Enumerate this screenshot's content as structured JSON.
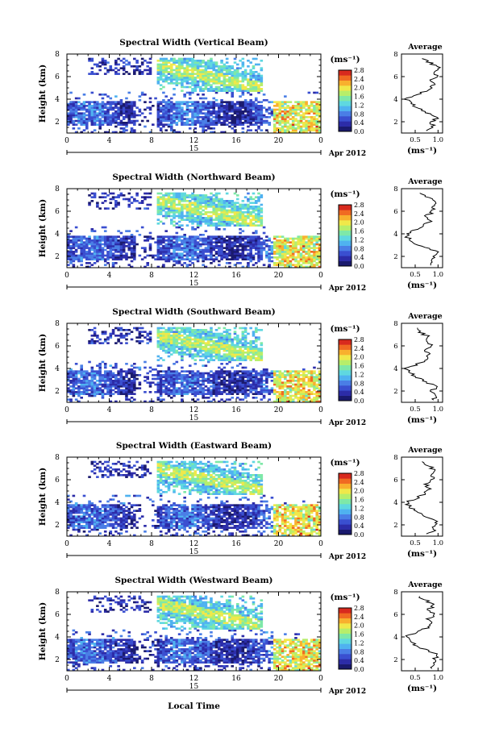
{
  "figure": {
    "date_label": "Apr 2012",
    "day_label": "15",
    "xlabel_bottom": "Local Time",
    "colorbar_unit": "(ms⁻¹)",
    "colorbar_ticks": [
      "0.0",
      "0.4",
      "0.8",
      "1.2",
      "1.6",
      "2.0",
      "2.4",
      "2.8"
    ],
    "avg_title": "Average",
    "avg_xlabel": "(ms⁻¹)",
    "colormap": [
      "#1a1a6e",
      "#2c2ca8",
      "#3a4fd0",
      "#4a7ee6",
      "#4fb2f0",
      "#5fd8e0",
      "#7ee8a8",
      "#b7ee6a",
      "#f0e84a",
      "#f8b02e",
      "#f06a22",
      "#d82a1e"
    ]
  },
  "chart_data": [
    {
      "type": "heatmap",
      "title": "Spectral Width (Vertical Beam)",
      "ylabel": "Height (km)",
      "xlim": [
        0,
        24
      ],
      "ylim": [
        1,
        8
      ],
      "xticks": [
        "0",
        "4",
        "8",
        "12",
        "16",
        "20",
        "0"
      ],
      "yticks": [
        "2",
        "4",
        "6",
        "8"
      ],
      "colorbar_range": [
        0.0,
        2.8
      ],
      "average_profile": {
        "xlim": [
          0.2,
          1.1
        ],
        "xticks": [
          "0.5",
          "1.0"
        ],
        "yticks": [
          "2",
          "4",
          "6",
          "8"
        ],
        "height_km": [
          1.2,
          1.6,
          2.0,
          2.4,
          2.8,
          3.2,
          3.6,
          4.0,
          4.4,
          4.8,
          5.2,
          5.6,
          6.0,
          6.4,
          6.8,
          7.2,
          7.6
        ],
        "width_ms": [
          0.8,
          0.9,
          0.85,
          1.0,
          0.75,
          0.55,
          0.4,
          0.3,
          0.55,
          0.75,
          0.9,
          0.85,
          0.95,
          0.9,
          1.0,
          0.85,
          0.65
        ]
      }
    },
    {
      "type": "heatmap",
      "title": "Spectral Width (Northward Beam)",
      "ylabel": "Height (km)",
      "xlim": [
        0,
        24
      ],
      "ylim": [
        1,
        8
      ],
      "xticks": [
        "0",
        "4",
        "8",
        "12",
        "16",
        "20",
        "0"
      ],
      "yticks": [
        "2",
        "4",
        "6",
        "8"
      ],
      "colorbar_range": [
        0.0,
        2.8
      ],
      "average_profile": {
        "xlim": [
          0.2,
          1.1
        ],
        "xticks": [
          "0.5",
          "1.0"
        ],
        "yticks": [
          "2",
          "4",
          "6",
          "8"
        ],
        "height_km": [
          1.2,
          1.6,
          2.0,
          2.4,
          2.8,
          3.2,
          3.6,
          4.0,
          4.4,
          4.8,
          5.2,
          5.6,
          6.0,
          6.4,
          6.8,
          7.2,
          7.6
        ],
        "width_ms": [
          0.85,
          0.8,
          0.95,
          1.0,
          0.7,
          0.5,
          0.35,
          0.3,
          0.5,
          0.7,
          0.85,
          0.75,
          0.9,
          0.85,
          0.95,
          0.8,
          0.6
        ]
      }
    },
    {
      "type": "heatmap",
      "title": "Spectral Width (Southward Beam)",
      "ylabel": "Height (km)",
      "xlim": [
        0,
        24
      ],
      "ylim": [
        1,
        8
      ],
      "xticks": [
        "0",
        "4",
        "8",
        "12",
        "16",
        "20",
        "0"
      ],
      "yticks": [
        "2",
        "4",
        "6",
        "8"
      ],
      "colorbar_range": [
        0.0,
        2.8
      ],
      "average_profile": {
        "xlim": [
          0.2,
          1.1
        ],
        "xticks": [
          "0.5",
          "1.0"
        ],
        "yticks": [
          "2",
          "4",
          "6",
          "8"
        ],
        "height_km": [
          1.2,
          1.6,
          2.0,
          2.4,
          2.8,
          3.2,
          3.6,
          4.0,
          4.4,
          4.8,
          5.2,
          5.6,
          6.0,
          6.4,
          6.8,
          7.2,
          7.6
        ],
        "width_ms": [
          0.9,
          0.95,
          0.85,
          1.0,
          0.7,
          0.55,
          0.4,
          0.3,
          0.55,
          0.75,
          0.8,
          0.7,
          0.85,
          0.75,
          0.8,
          0.6,
          0.55
        ]
      }
    },
    {
      "type": "heatmap",
      "title": "Spectral Width (Eastward Beam)",
      "ylabel": "Height (km)",
      "xlim": [
        0,
        24
      ],
      "ylim": [
        1,
        8
      ],
      "xticks": [
        "0",
        "4",
        "8",
        "12",
        "16",
        "20",
        "0"
      ],
      "yticks": [
        "2",
        "4",
        "6",
        "8"
      ],
      "colorbar_range": [
        0.0,
        2.8
      ],
      "average_profile": {
        "xlim": [
          0.2,
          1.1
        ],
        "xticks": [
          "0.5",
          "1.0"
        ],
        "yticks": [
          "2",
          "4",
          "6",
          "8"
        ],
        "height_km": [
          1.2,
          1.6,
          2.0,
          2.4,
          2.8,
          3.2,
          3.6,
          4.0,
          4.4,
          4.8,
          5.2,
          5.6,
          6.0,
          6.4,
          6.8,
          7.2,
          7.6
        ],
        "width_ms": [
          0.8,
          0.95,
          0.9,
          1.0,
          0.7,
          0.5,
          0.4,
          0.3,
          0.55,
          0.7,
          0.8,
          0.75,
          0.9,
          0.85,
          0.95,
          0.8,
          0.65
        ]
      }
    },
    {
      "type": "heatmap",
      "title": "Spectral Width (Westward Beam)",
      "ylabel": "Height (km)",
      "xlim": [
        0,
        24
      ],
      "ylim": [
        1,
        8
      ],
      "xticks": [
        "0",
        "4",
        "8",
        "12",
        "16",
        "20",
        "0"
      ],
      "yticks": [
        "2",
        "4",
        "6",
        "8"
      ],
      "colorbar_range": [
        0.0,
        2.8
      ],
      "average_profile": {
        "xlim": [
          0.2,
          1.1
        ],
        "xticks": [
          "0.5",
          "1.0"
        ],
        "yticks": [
          "2",
          "4",
          "6",
          "8"
        ],
        "height_km": [
          1.2,
          1.6,
          2.0,
          2.4,
          2.8,
          3.2,
          3.6,
          4.0,
          4.4,
          4.8,
          5.2,
          5.6,
          6.0,
          6.4,
          6.8,
          7.2,
          7.6
        ],
        "width_ms": [
          0.85,
          0.95,
          0.9,
          1.0,
          0.75,
          0.55,
          0.4,
          0.3,
          0.5,
          0.75,
          0.85,
          0.8,
          0.95,
          0.8,
          0.9,
          0.75,
          0.6
        ]
      }
    }
  ]
}
